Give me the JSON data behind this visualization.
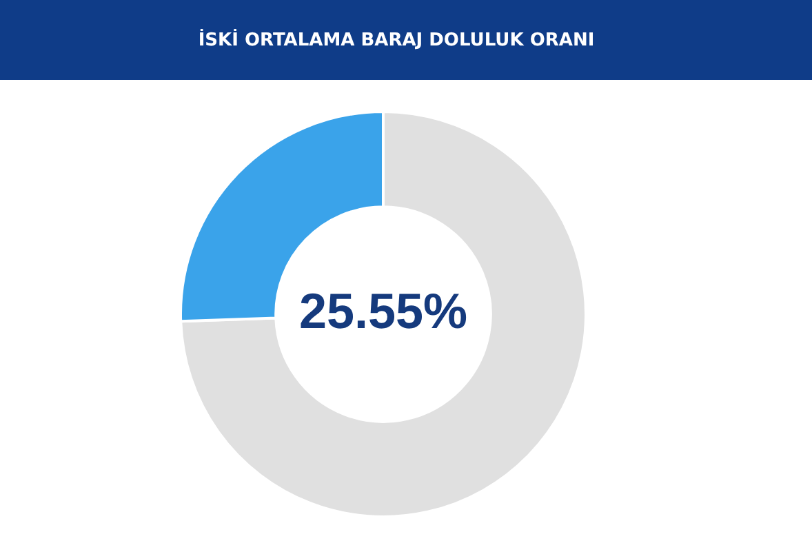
{
  "chart_data": {
    "type": "donut",
    "title": "İSKİ ORTALAMA BARAJ DOLULUK ORANI",
    "categories": [
      null,
      null
    ],
    "values": [
      74.45,
      25.55
    ],
    "colors": [
      "#e0e0e0",
      "#3aa3ea"
    ],
    "value_labels": [
      null,
      "25.55%"
    ]
  }
}
